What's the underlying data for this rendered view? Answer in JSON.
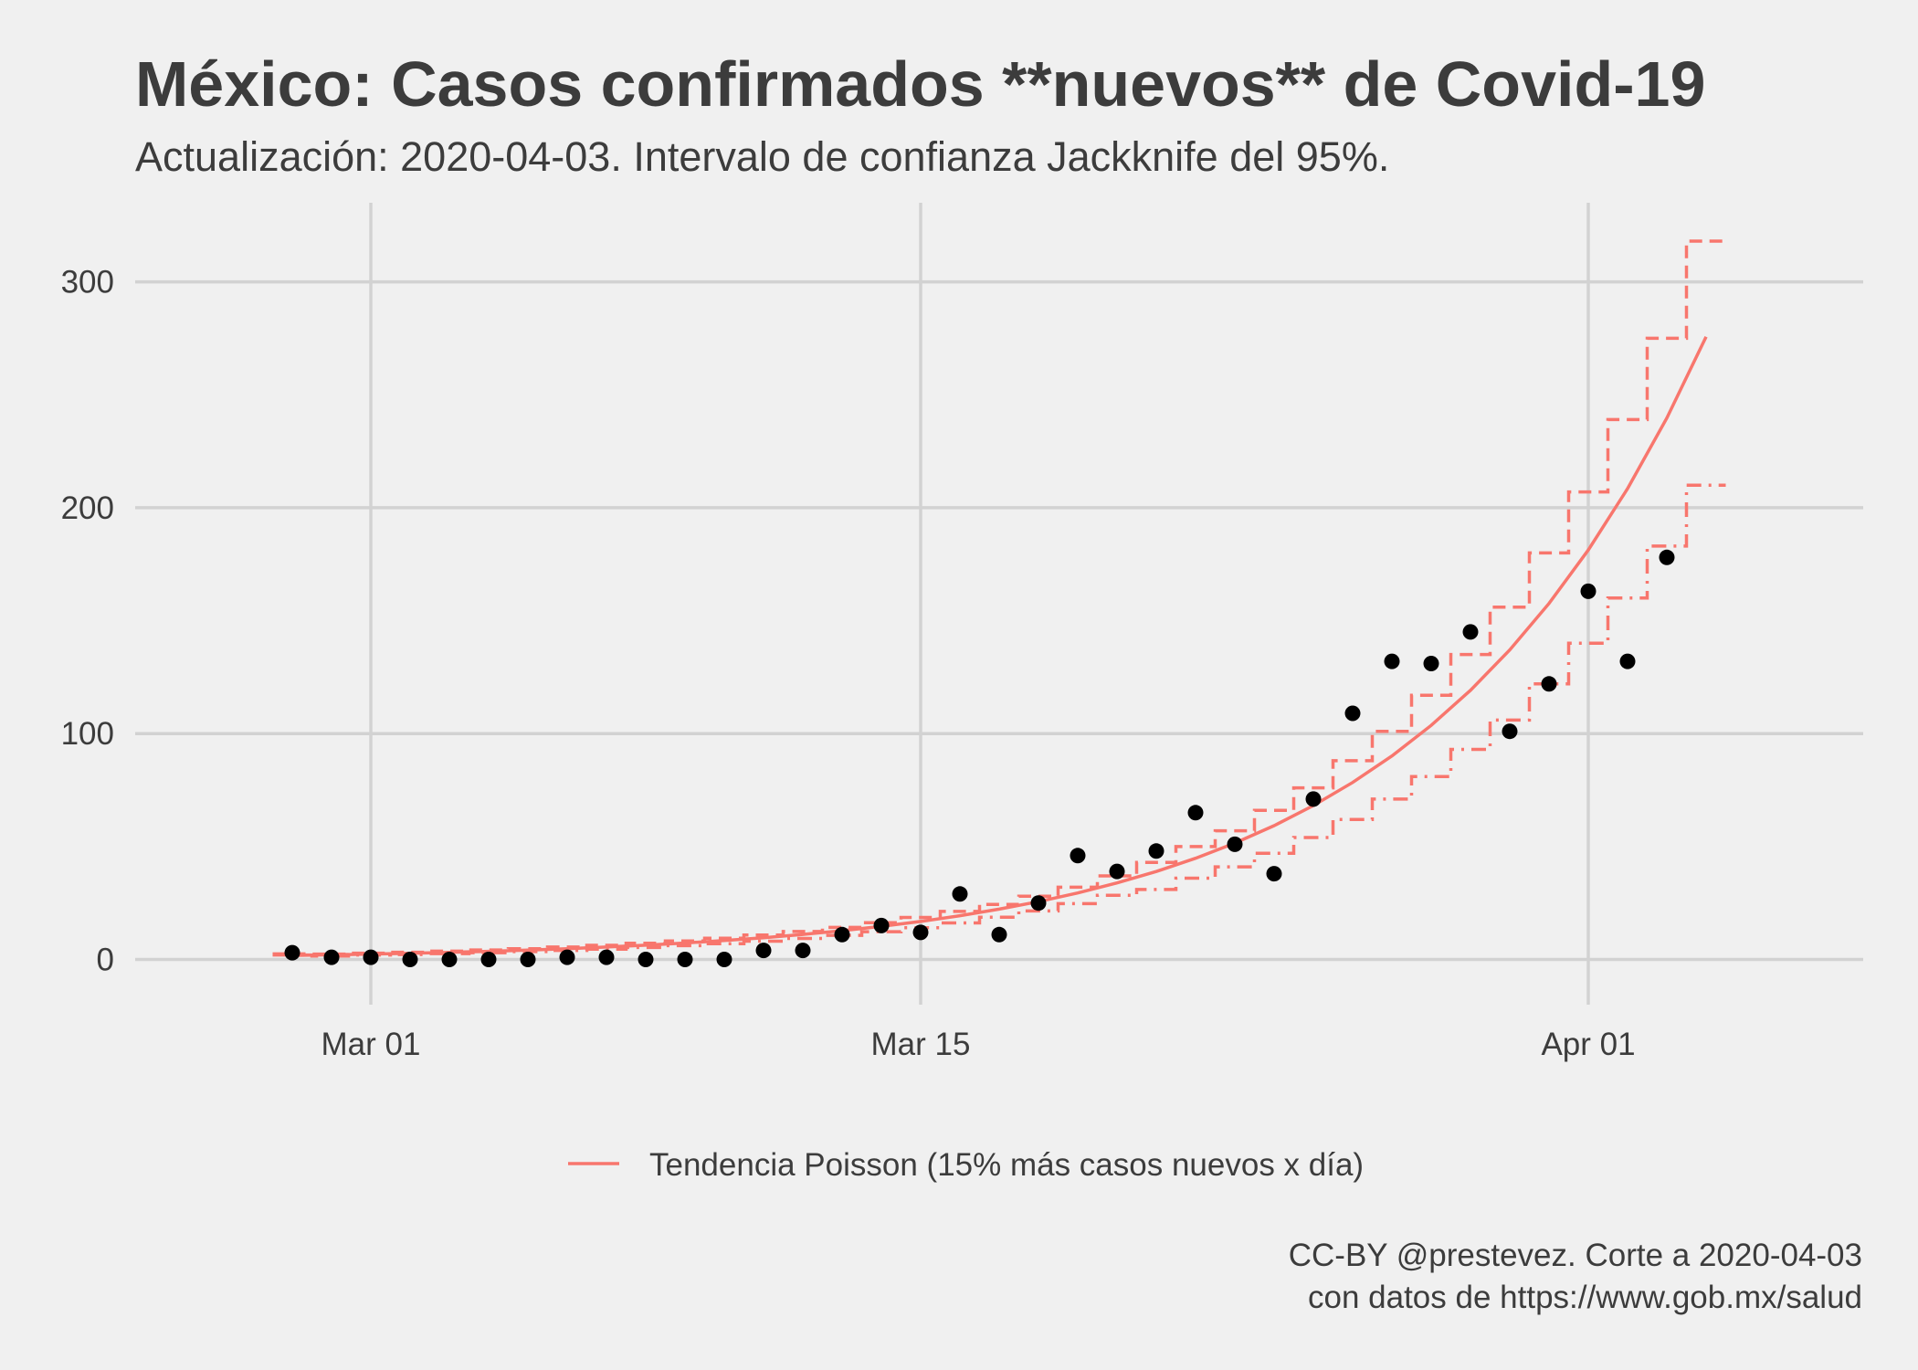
{
  "chart_data": {
    "type": "scatter",
    "title": "México: Casos confirmados **nuevos** de Covid-19",
    "subtitle": "Actualización: 2020-04-03. Intervalo de confianza Jackknife del 95%.",
    "caption": [
      "CC-BY @prestevez. Corte a 2020-04-03",
      "con datos de https://www.gob.mx/salud"
    ],
    "ylim": [
      -20,
      335
    ],
    "y_ticks": [
      0,
      100,
      200,
      300
    ],
    "x_ticks": [
      {
        "date": "2020-03-01",
        "label": "Mar 01"
      },
      {
        "date": "2020-03-15",
        "label": "Mar 15"
      },
      {
        "date": "2020-04-01",
        "label": "Apr 01"
      }
    ],
    "x_range": [
      "2020-02-24",
      "2020-04-08"
    ],
    "grid": true,
    "legend": {
      "position": "bottom",
      "label": "Tendencia Poisson (15% más casos nuevos x día)"
    },
    "colors": {
      "trend": "#f8766d",
      "points": "#000000",
      "grid": "#d2d2d2",
      "background": "#f0f0f0"
    },
    "observed": {
      "name": "",
      "points": [
        {
          "date": "2020-02-28",
          "cases": 3
        },
        {
          "date": "2020-02-29",
          "cases": 1
        },
        {
          "date": "2020-03-01",
          "cases": 1
        },
        {
          "date": "2020-03-02",
          "cases": 0
        },
        {
          "date": "2020-03-03",
          "cases": 0
        },
        {
          "date": "2020-03-04",
          "cases": 0
        },
        {
          "date": "2020-03-05",
          "cases": 0
        },
        {
          "date": "2020-03-06",
          "cases": 1
        },
        {
          "date": "2020-03-07",
          "cases": 1
        },
        {
          "date": "2020-03-08",
          "cases": 0
        },
        {
          "date": "2020-03-09",
          "cases": 0
        },
        {
          "date": "2020-03-10",
          "cases": 0
        },
        {
          "date": "2020-03-11",
          "cases": 4
        },
        {
          "date": "2020-03-12",
          "cases": 4
        },
        {
          "date": "2020-03-13",
          "cases": 11
        },
        {
          "date": "2020-03-14",
          "cases": 15
        },
        {
          "date": "2020-03-15",
          "cases": 12
        },
        {
          "date": "2020-03-16",
          "cases": 29
        },
        {
          "date": "2020-03-17",
          "cases": 11
        },
        {
          "date": "2020-03-18",
          "cases": 25
        },
        {
          "date": "2020-03-19",
          "cases": 46
        },
        {
          "date": "2020-03-20",
          "cases": 39
        },
        {
          "date": "2020-03-21",
          "cases": 48
        },
        {
          "date": "2020-03-22",
          "cases": 65
        },
        {
          "date": "2020-03-23",
          "cases": 51
        },
        {
          "date": "2020-03-24",
          "cases": 38
        },
        {
          "date": "2020-03-25",
          "cases": 71
        },
        {
          "date": "2020-03-26",
          "cases": 109
        },
        {
          "date": "2020-03-27",
          "cases": 132
        },
        {
          "date": "2020-03-28",
          "cases": 131
        },
        {
          "date": "2020-03-29",
          "cases": 145
        },
        {
          "date": "2020-03-30",
          "cases": 101
        },
        {
          "date": "2020-03-31",
          "cases": 122
        },
        {
          "date": "2020-04-01",
          "cases": 163
        },
        {
          "date": "2020-04-02",
          "cases": 132
        },
        {
          "date": "2020-04-03",
          "cases": 178
        }
      ]
    },
    "trend": {
      "name": "Tendencia Poisson (15% más casos nuevos x día)",
      "start_date": "2020-02-28",
      "start_value": 1.8,
      "daily_growth": 1.15,
      "days": 37
    },
    "confidence_interval": {
      "label": "Intervalo de confianza Jackknife del 95%",
      "level": 0.95,
      "lower": [
        2,
        1.5,
        2,
        2.2,
        2.6,
        3,
        3.5,
        4,
        4.6,
        5.3,
        6.1,
        7,
        8.1,
        9.3,
        10.7,
        12.3,
        14.1,
        16.2,
        18.7,
        21.5,
        24.7,
        28.4,
        31,
        36,
        41,
        47,
        54,
        62,
        71,
        81,
        93,
        106,
        122,
        140,
        160,
        183,
        210
      ],
      "upper": [
        2.5,
        2.4,
        2.8,
        3.2,
        3.7,
        4.2,
        4.8,
        5.5,
        6.3,
        7.2,
        8.2,
        9.4,
        10.8,
        12.4,
        14.2,
        16.3,
        18.6,
        21.3,
        24.4,
        28,
        32,
        37,
        43,
        50,
        57,
        66,
        76,
        88,
        101,
        117,
        135,
        156,
        180,
        207,
        239,
        275,
        318
      ]
    }
  }
}
